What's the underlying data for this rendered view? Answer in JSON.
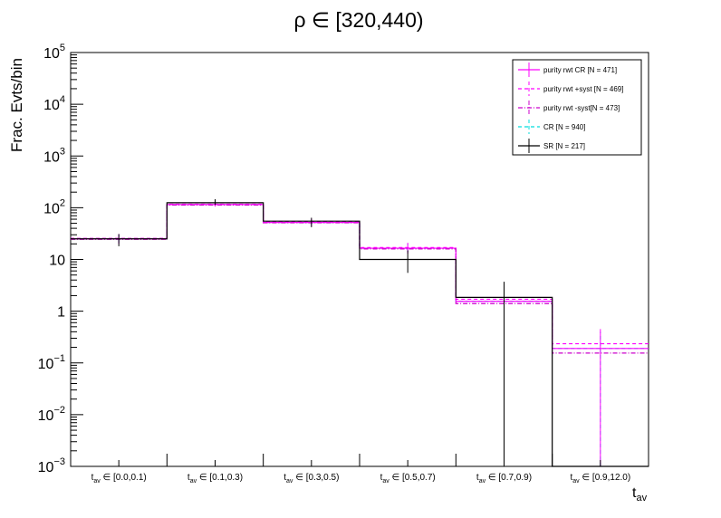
{
  "chart_data": {
    "type": "step-histogram",
    "title": "ρ ∈ [320,440)",
    "xlabel": {
      "main": "t",
      "sub": "av"
    },
    "ylabel": "Frac. Evts/bin",
    "yscale": "log",
    "ylim": [
      0.001,
      100000
    ],
    "y_ticks": [
      {
        "value": 0.001,
        "base": "10",
        "exp": "−3"
      },
      {
        "value": 0.01,
        "base": "10",
        "exp": "−2"
      },
      {
        "value": 0.1,
        "base": "10",
        "exp": "−1"
      },
      {
        "value": 1,
        "base": "1",
        "exp": ""
      },
      {
        "value": 10,
        "base": "10",
        "exp": ""
      },
      {
        "value": 100,
        "base": "10",
        "exp": "2"
      },
      {
        "value": 1000,
        "base": "10",
        "exp": "3"
      },
      {
        "value": 10000,
        "base": "10",
        "exp": "4"
      },
      {
        "value": 100000,
        "base": "10",
        "exp": "5"
      }
    ],
    "categories": [
      {
        "main": "t",
        "sub": "av",
        "range": " ∈ [0.0,0.1)"
      },
      {
        "main": "t",
        "sub": "av",
        "range": " ∈ [0.1,0.3)"
      },
      {
        "main": "t",
        "sub": "av",
        "range": " ∈ [0.3,0.5)"
      },
      {
        "main": "t",
        "sub": "av",
        "range": " ∈ [0.5,0.7)"
      },
      {
        "main": "t",
        "sub": "av",
        "range": " ∈ [0.7,0.9)"
      },
      {
        "main": "t",
        "sub": "av",
        "range": " ∈ [0.9,12.0)"
      }
    ],
    "series": [
      {
        "name": "purity rwt CR [N = 471]",
        "color": "#ff00ff",
        "dash": "",
        "values": [
          25,
          115,
          52,
          16.5,
          1.55,
          0.19
        ],
        "errors": [
          [
            20,
            31
          ],
          [
            105,
            126
          ],
          [
            44,
            61
          ],
          [
            13,
            21
          ],
          [
            0.5,
            3.5
          ],
          [
            0.001,
            0.45
          ]
        ]
      },
      {
        "name": "purity rwt +syst [N = 469]",
        "color": "#ff00ff",
        "dash": "4,3",
        "values": [
          25.5,
          117,
          53.5,
          17,
          1.7,
          0.235
        ],
        "errors": []
      },
      {
        "name": "purity rwt -syst[N = 473]",
        "color": "#cc00cc",
        "dash": "5,2,1,2",
        "values": [
          24.5,
          113,
          51,
          16,
          1.4,
          0.155
        ],
        "errors": []
      },
      {
        "name": "CR [N = 940]",
        "color": "#00dddd",
        "dash": "4,3",
        "values": [
          25,
          115,
          52,
          16.5,
          1.55,
          0.19
        ],
        "errors": [
          [
            21,
            30
          ],
          [
            108,
            123
          ],
          [
            46,
            58
          ],
          [
            14,
            20
          ],
          [
            0.7,
            2.8
          ],
          [
            0.001,
            0.4
          ]
        ]
      },
      {
        "name": "SR [N = 217]",
        "color": "#000000",
        "dash": "",
        "values": [
          25,
          125,
          55,
          10,
          1.85,
          0.0005
        ],
        "errors": [
          [
            18,
            31
          ],
          [
            114,
            146
          ],
          [
            42,
            64
          ],
          [
            5.5,
            15
          ],
          [
            0.001,
            3.7
          ],
          [
            0.0005,
            0.001
          ]
        ]
      }
    ],
    "legend": {
      "position": "top-right"
    }
  }
}
